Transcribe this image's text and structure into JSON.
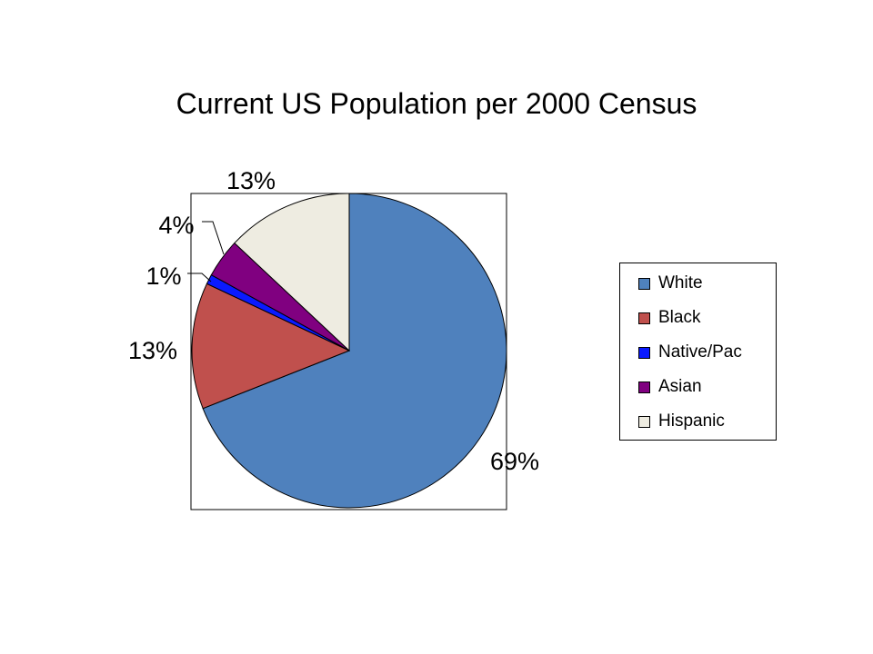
{
  "chart_data": {
    "type": "pie",
    "title": "Current US Population per 2000 Census",
    "slices": [
      {
        "name": "White",
        "value": 69,
        "label": "69%",
        "color": "#4f81bd"
      },
      {
        "name": "Black",
        "value": 13,
        "label": "13%",
        "color": "#c0504d"
      },
      {
        "name": "Native/Pac",
        "value": 1,
        "label": "1%",
        "color": "#0a1aff"
      },
      {
        "name": "Asian",
        "value": 4,
        "label": "4%",
        "color": "#800080"
      },
      {
        "name": "Hispanic",
        "value": 13,
        "label": "13%",
        "color": "#eeece1"
      }
    ],
    "legend_position": "right",
    "plot_area_border": true
  }
}
